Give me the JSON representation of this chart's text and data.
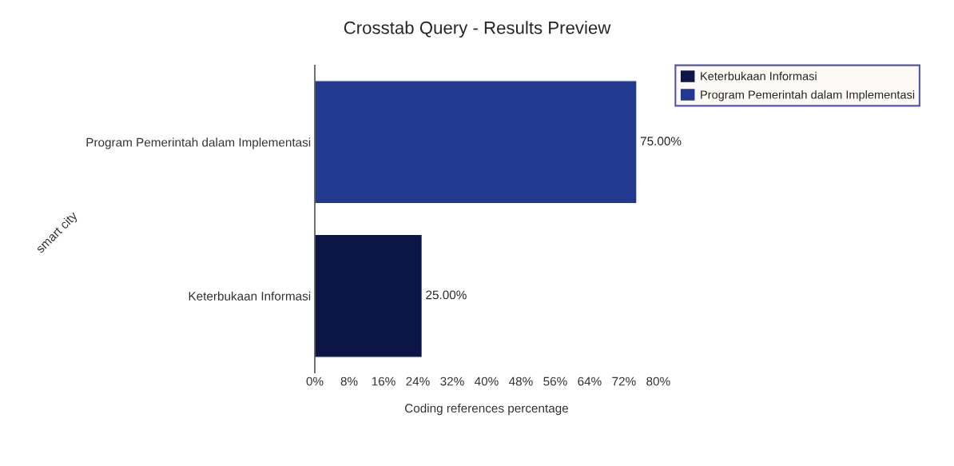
{
  "chart_data": {
    "type": "bar",
    "orientation": "horizontal",
    "title": "Crosstab Query - Results Preview",
    "xlabel": "Coding references percentage",
    "ylabel": "smart city",
    "categories": [
      "Program Pemerintah dalam Implementasi",
      "Keterbukaan Informasi"
    ],
    "series": [
      {
        "name": "Keterbukaan Informasi",
        "color": "#0c1646",
        "values": [
          null,
          25
        ],
        "value_labels": [
          null,
          "25.00%"
        ]
      },
      {
        "name": "Program Pemerintah dalam Implementasi",
        "color": "#21398f",
        "values": [
          75,
          null
        ],
        "value_labels": [
          "75.00%",
          null
        ]
      }
    ],
    "xlim": [
      0,
      80
    ],
    "xticks": [
      {
        "value": 0,
        "label": "0%"
      },
      {
        "value": 8,
        "label": "8%"
      },
      {
        "value": 16,
        "label": "16%"
      },
      {
        "value": 24,
        "label": "24%"
      },
      {
        "value": 32,
        "label": "32%"
      },
      {
        "value": 40,
        "label": "40%"
      },
      {
        "value": 48,
        "label": "48%"
      },
      {
        "value": 56,
        "label": "56%"
      },
      {
        "value": 64,
        "label": "64%"
      },
      {
        "value": 72,
        "label": "72%"
      },
      {
        "value": 80,
        "label": "80%"
      }
    ],
    "legend": "right",
    "grid": false
  }
}
